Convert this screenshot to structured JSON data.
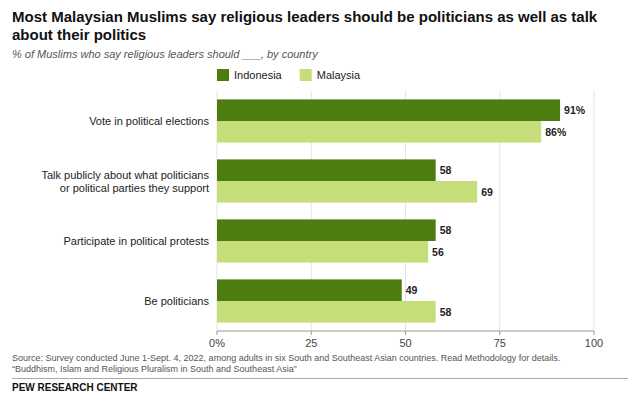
{
  "chart_data": {
    "type": "bar",
    "orientation": "horizontal",
    "title": "Most Malaysian Muslims say religious leaders should be politicians as well as talk about their politics",
    "subtitle": "% of ​Muslims​ who say religious leaders should ___, by country",
    "categories": [
      "Be politicians",
      "Participate in political protests",
      "Talk publicly about what politicians\nor political parties they support",
      "Vote in political elections"
    ],
    "series": [
      {
        "name": "Indonesia",
        "color": "#4d7c0f",
        "values": [
          49,
          58,
          58,
          91
        ],
        "value_labels": [
          "49",
          "58",
          "58",
          "91%"
        ]
      },
      {
        "name": "Malaysia",
        "color": "#c5de7a",
        "values": [
          58,
          56,
          69,
          86
        ],
        "value_labels": [
          "58",
          "56",
          "69",
          "86%"
        ]
      }
    ],
    "xlim": [
      0,
      100
    ],
    "xticks": [
      {
        "value": 0,
        "label": "0%"
      },
      25,
      50,
      75,
      100
    ],
    "grid": true,
    "legend": "top-left",
    "data_labels": true,
    "source": [
      "Source: Survey conducted June 1-Sept. 4, 2022, among adults in six South and Southeast Asian countries. Read Methodology for details.",
      "“Buddhism, Islam and Religious Pluralism in South and Southeast Asia”"
    ],
    "footer": "PEW RESEARCH CENTER"
  }
}
